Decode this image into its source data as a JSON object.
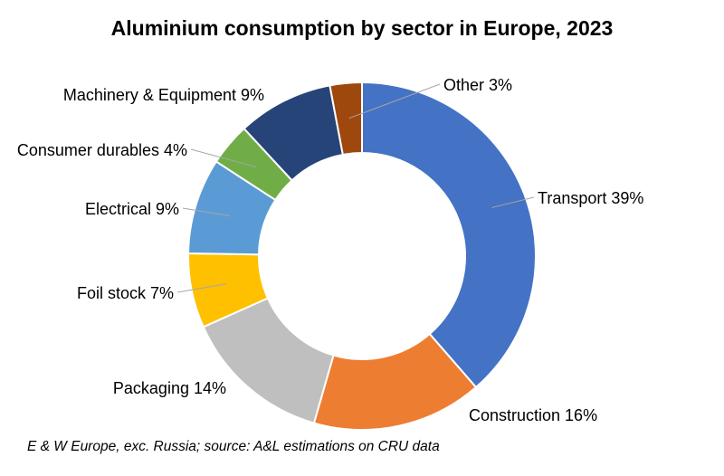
{
  "chart_data": {
    "type": "pie",
    "title": "Aluminium consumption by sector in Europe, 2023",
    "footnote": "E & W Europe, exc. Russia; source: A&L estimations on CRU data",
    "slices": [
      {
        "label": "Transport 39%",
        "value": 39,
        "color": "#4472C4"
      },
      {
        "label": "Construction 16%",
        "value": 16,
        "color": "#ED7D31"
      },
      {
        "label": "Packaging 14%",
        "value": 14,
        "color": "#BFBFBF"
      },
      {
        "label": "Foil stock 7%",
        "value": 7,
        "color": "#FFC000"
      },
      {
        "label": "Electrical 9%",
        "value": 9,
        "color": "#5B9BD5"
      },
      {
        "label": "Consumer durables 4%",
        "value": 4,
        "color": "#70AD47"
      },
      {
        "label": "Machinery & Equipment 9%",
        "value": 9,
        "color": "#264478"
      },
      {
        "label": "Other 3%",
        "value": 3,
        "color": "#9E480E"
      }
    ]
  }
}
